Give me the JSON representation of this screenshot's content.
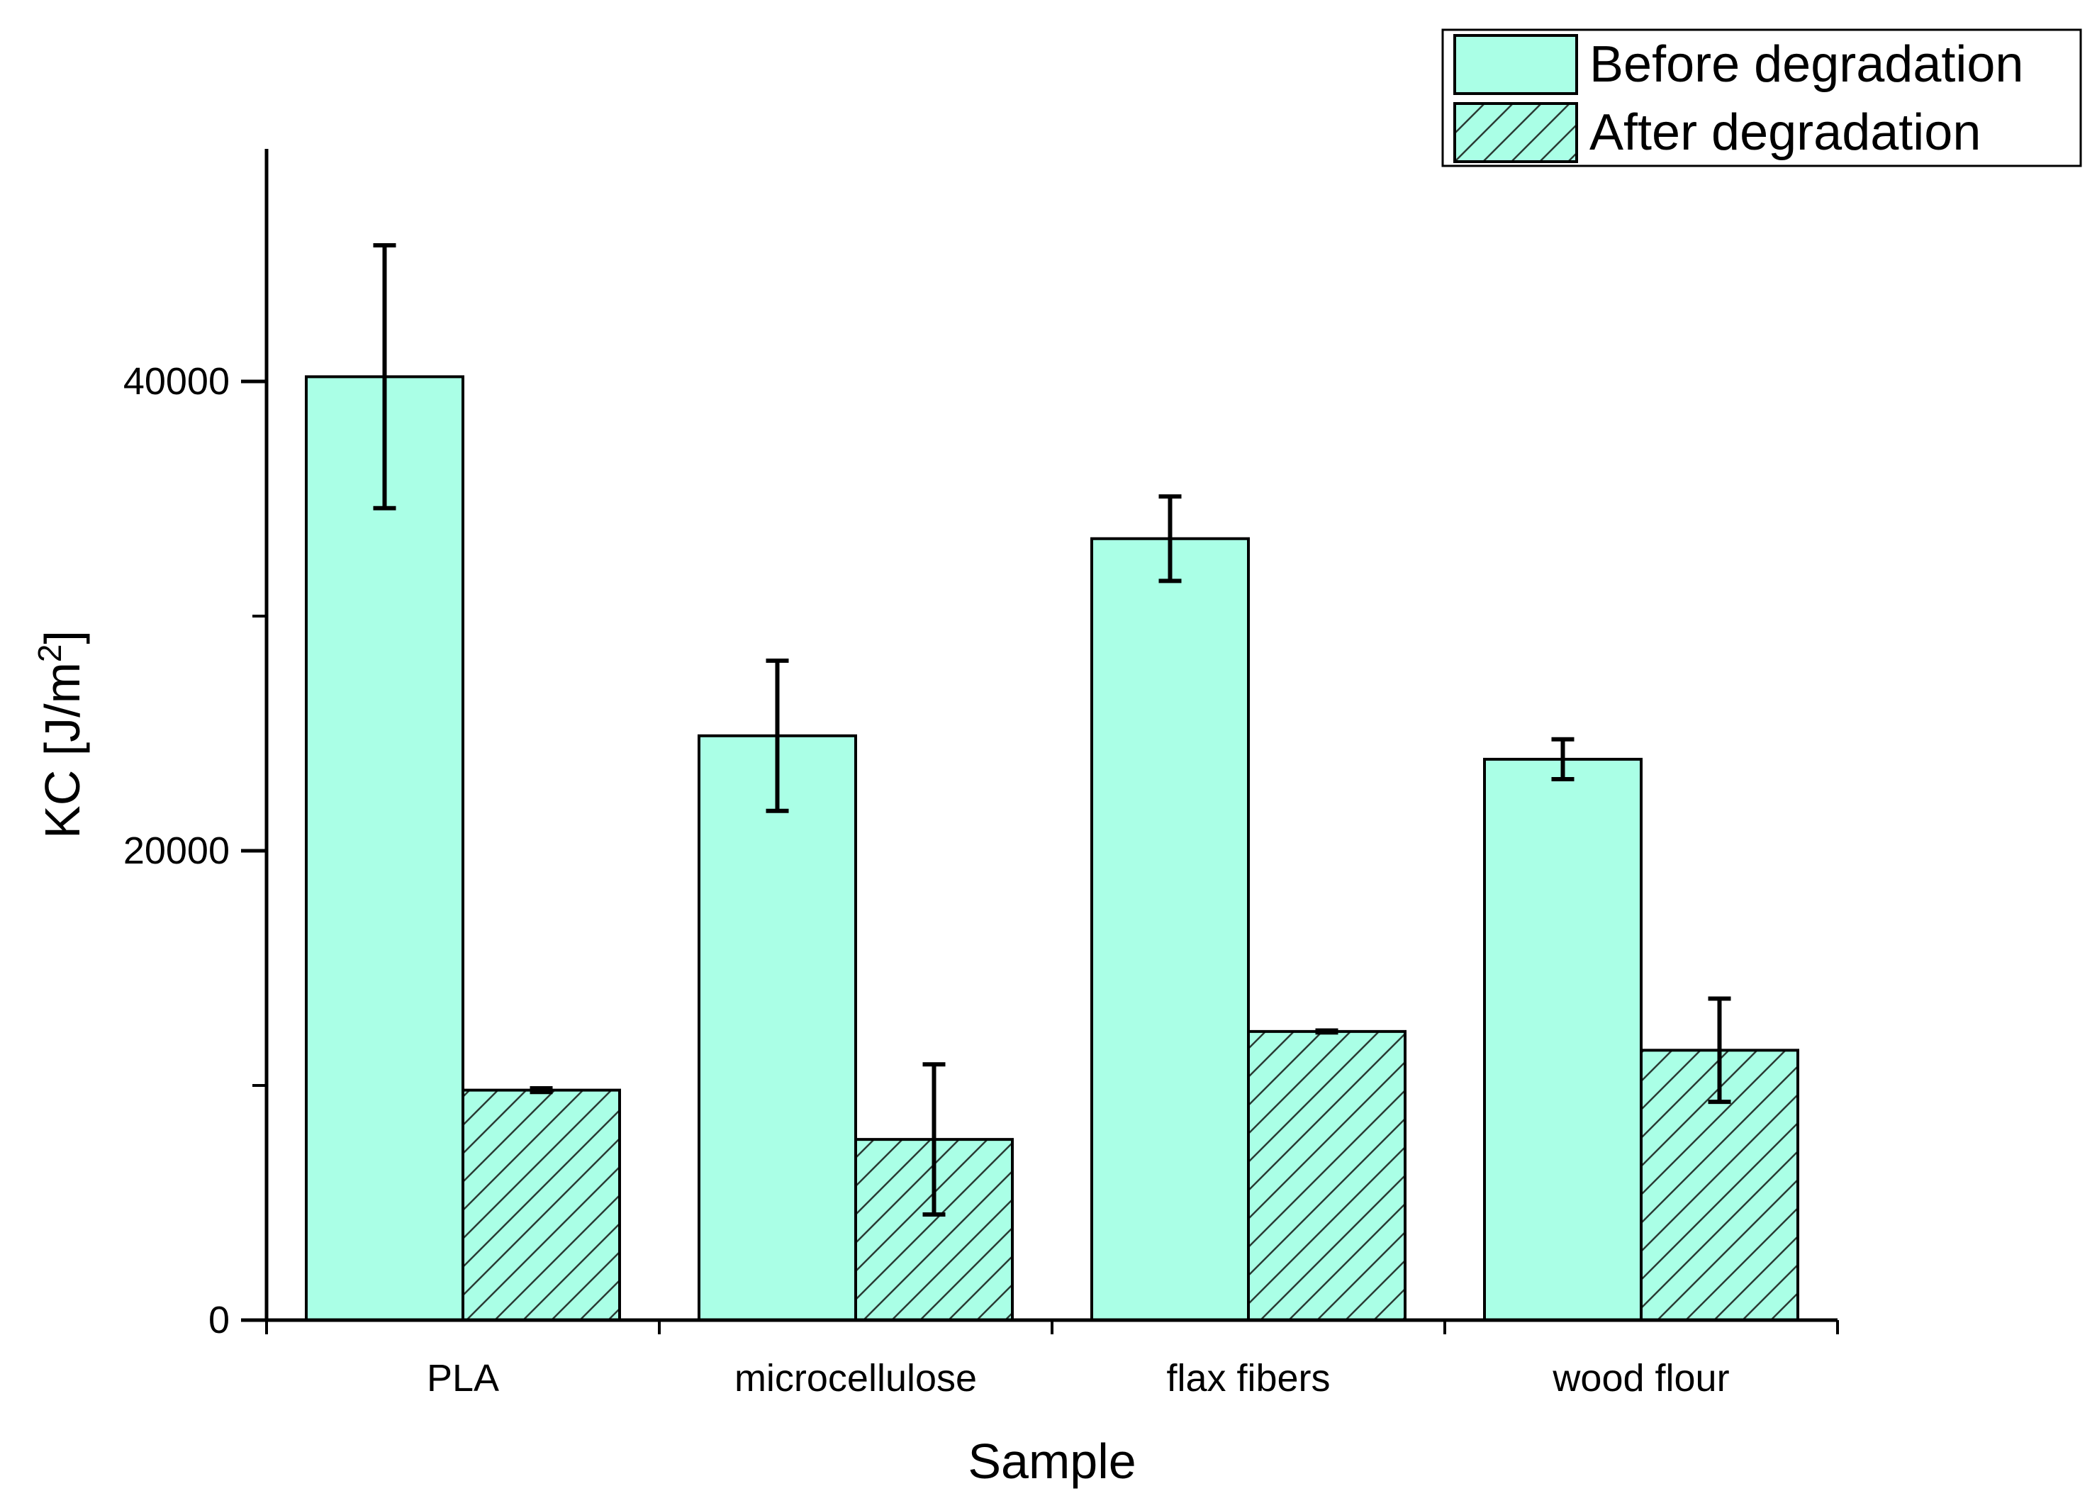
{
  "chart_data": {
    "type": "bar",
    "title": "",
    "xlabel": "Sample",
    "ylabel": "KC [J/m",
    "ylabel_superscript": "2",
    "ylabel_suffix": "]",
    "categories": [
      "PLA",
      "microcellulose",
      "flax fibers",
      "wood flour"
    ],
    "ylim": [
      0,
      50000
    ],
    "yticks": [
      0,
      20000,
      40000
    ],
    "ytick_labels": [
      "0",
      "20000",
      "40000"
    ],
    "grid": false,
    "legend_position": "top-right",
    "series": [
      {
        "name": "Before degradation",
        "pattern": "solid",
        "values": [
          40200,
          24900,
          33300,
          23900
        ],
        "errors": [
          5600,
          3200,
          1800,
          850
        ]
      },
      {
        "name": "After degradation",
        "pattern": "hatch",
        "values": [
          9800,
          7700,
          12300,
          11500
        ],
        "errors": [
          80,
          3200,
          40,
          2200
        ]
      }
    ],
    "colors": {
      "bar_fill": "#aaffe6",
      "outline": "#000000",
      "hatch": "#2a3a33"
    }
  }
}
